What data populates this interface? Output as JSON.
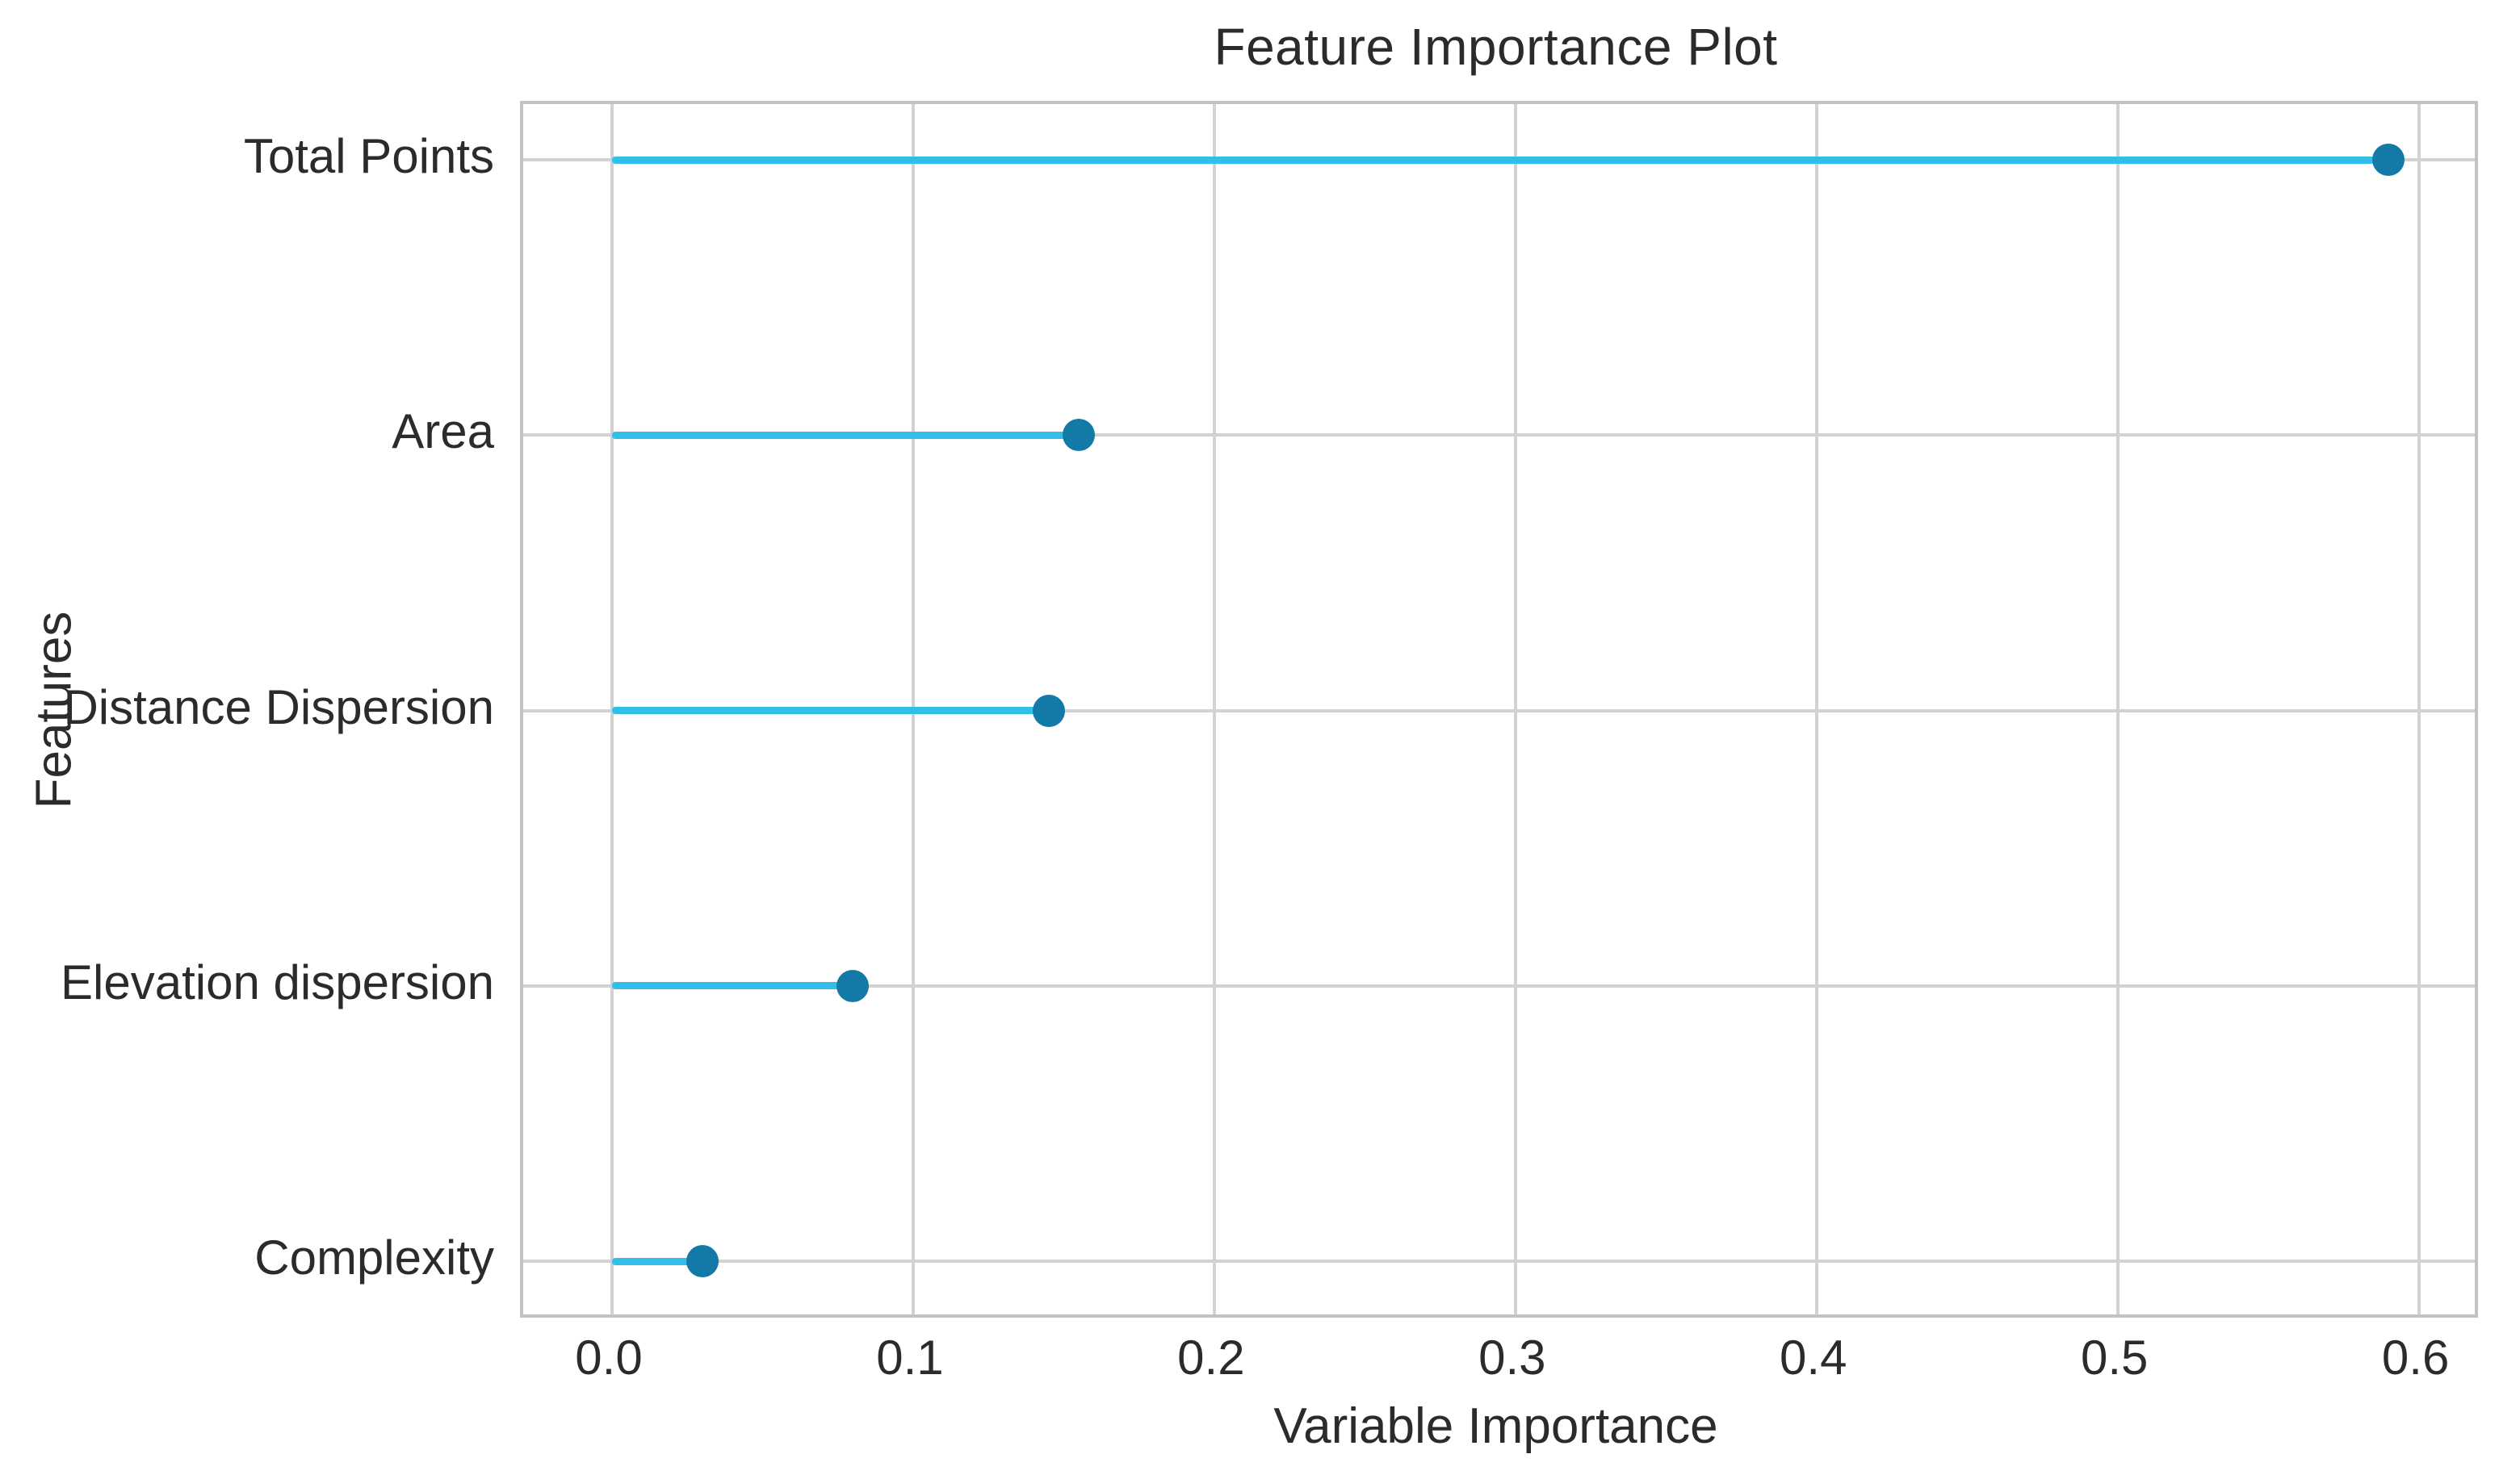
{
  "chart_data": {
    "type": "lollipop",
    "title": "Feature Importance Plot",
    "xlabel": "Variable Importance",
    "ylabel": "Features",
    "categories": [
      "Total Points",
      "Area",
      "Distance Dispersion",
      "Elevation dispersion",
      "Complexity"
    ],
    "values": [
      0.59,
      0.155,
      0.145,
      0.08,
      0.03
    ],
    "xticks": [
      0.0,
      0.1,
      0.2,
      0.3,
      0.4,
      0.5,
      0.6
    ],
    "xtick_labels": [
      "0.0",
      "0.1",
      "0.2",
      "0.3",
      "0.4",
      "0.5",
      "0.6"
    ],
    "xlim": [
      -0.0295,
      0.6186
    ],
    "grid": true,
    "legend": "none",
    "colors": {
      "stem": "#31bfe9",
      "marker": "#137aa8",
      "gridline": "#d2d2d2",
      "spine": "#c3c3c3",
      "text": "#2b2b2b",
      "background": "#ffffff"
    }
  }
}
